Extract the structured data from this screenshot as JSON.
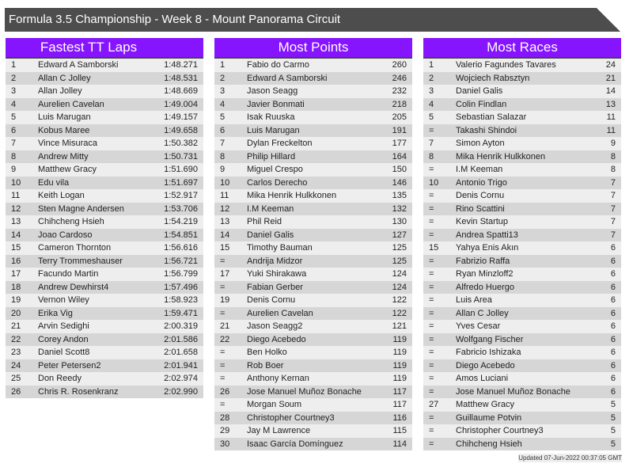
{
  "title": "Formula 3.5 Championship - Week 8 - Mount Panorama Circuit",
  "colors": {
    "header": "#8614ff",
    "titlebar": "#4d4d4d",
    "row_light": "#eeeeee",
    "row_dark": "#d6d6d6"
  },
  "tables": [
    {
      "title": "Fastest TT Laps",
      "rows": [
        [
          "1",
          "Edward A Samborski",
          "1:48.271"
        ],
        [
          "2",
          "Allan C Jolley",
          "1:48.531"
        ],
        [
          "3",
          "Allan Jolley",
          "1:48.669"
        ],
        [
          "4",
          "Aurelien Cavelan",
          "1:49.004"
        ],
        [
          "5",
          "Luis Marugan",
          "1:49.157"
        ],
        [
          "6",
          "Kobus Maree",
          "1:49.658"
        ],
        [
          "7",
          "Vince Misuraca",
          "1:50.382"
        ],
        [
          "8",
          "Andrew Mitty",
          "1:50.731"
        ],
        [
          "9",
          "Matthew Gracy",
          "1:51.690"
        ],
        [
          "10",
          "Edu vila",
          "1:51.697"
        ],
        [
          "11",
          "Keith Logan",
          "1:52.917"
        ],
        [
          "12",
          "Sten Magne Andersen",
          "1:53.706"
        ],
        [
          "13",
          "Chihcheng Hsieh",
          "1:54.219"
        ],
        [
          "14",
          "Joao Cardoso",
          "1:54.851"
        ],
        [
          "15",
          "Cameron Thornton",
          "1:56.616"
        ],
        [
          "16",
          "Terry Trommeshauser",
          "1:56.721"
        ],
        [
          "17",
          "Facundo Martin",
          "1:56.799"
        ],
        [
          "18",
          "Andrew Dewhirst4",
          "1:57.496"
        ],
        [
          "19",
          "Vernon Wiley",
          "1:58.923"
        ],
        [
          "20",
          "Erika Vig",
          "1:59.471"
        ],
        [
          "21",
          "Arvin Sedighi",
          "2:00.319"
        ],
        [
          "22",
          "Corey Andon",
          "2:01.586"
        ],
        [
          "23",
          "Daniel Scott8",
          "2:01.658"
        ],
        [
          "24",
          "Peter Petersen2",
          "2:01.941"
        ],
        [
          "25",
          "Don Reedy",
          "2:02.974"
        ],
        [
          "26",
          "Chris R. Rosenkranz",
          "2:02.990"
        ]
      ]
    },
    {
      "title": "Most Points",
      "rows": [
        [
          "1",
          "Fabio do Carmo",
          "260"
        ],
        [
          "2",
          "Edward A Samborski",
          "246"
        ],
        [
          "3",
          "Jason Seagg",
          "232"
        ],
        [
          "4",
          "Javier Bonmati",
          "218"
        ],
        [
          "5",
          "Isak Ruuska",
          "205"
        ],
        [
          "6",
          "Luis Marugan",
          "191"
        ],
        [
          "7",
          "Dylan Freckelton",
          "177"
        ],
        [
          "8",
          "Philip Hillard",
          "164"
        ],
        [
          "9",
          "Miguel Crespo",
          "150"
        ],
        [
          "10",
          "Carlos Derecho",
          "146"
        ],
        [
          "11",
          "Mika Henrik Hulkkonen",
          "135"
        ],
        [
          "12",
          "I.M Keeman",
          "132"
        ],
        [
          "13",
          "Phil Reid",
          "130"
        ],
        [
          "14",
          "Daniel Galis",
          "127"
        ],
        [
          "15",
          "Timothy Bauman",
          "125"
        ],
        [
          "=",
          "Andrija Midzor",
          "125"
        ],
        [
          "17",
          "Yuki Shirakawa",
          "124"
        ],
        [
          "=",
          "Fabian Gerber",
          "124"
        ],
        [
          "19",
          "Denis Cornu",
          "122"
        ],
        [
          "=",
          "Aurelien Cavelan",
          "122"
        ],
        [
          "21",
          "Jason Seagg2",
          "121"
        ],
        [
          "22",
          "Diego Acebedo",
          "119"
        ],
        [
          "=",
          "Ben Holko",
          "119"
        ],
        [
          "=",
          "Rob Boer",
          "119"
        ],
        [
          "=",
          "Anthony Kernan",
          "119"
        ],
        [
          "26",
          "Jose Manuel Muñoz Bonache",
          "117"
        ],
        [
          "=",
          "Morgan Soum",
          "117"
        ],
        [
          "28",
          "Christopher Courtney3",
          "116"
        ],
        [
          "29",
          "Jay M Lawrence",
          "115"
        ],
        [
          "30",
          "Isaac García Domínguez",
          "114"
        ]
      ]
    },
    {
      "title": "Most Races",
      "rows": [
        [
          "1",
          "Valerio Fagundes Tavares",
          "24"
        ],
        [
          "2",
          "Wojciech Rabsztyn",
          "21"
        ],
        [
          "3",
          "Daniel Galis",
          "14"
        ],
        [
          "4",
          "Colin Findlan",
          "13"
        ],
        [
          "5",
          "Sebastian Salazar",
          "11"
        ],
        [
          "=",
          "Takashi Shindoi",
          "11"
        ],
        [
          "7",
          "Simon Ayton",
          "9"
        ],
        [
          "8",
          "Mika Henrik Hulkkonen",
          "8"
        ],
        [
          "=",
          "I.M Keeman",
          "8"
        ],
        [
          "10",
          "Antonio Trigo",
          "7"
        ],
        [
          "=",
          "Denis Cornu",
          "7"
        ],
        [
          "=",
          "Rino Scattini",
          "7"
        ],
        [
          "=",
          "Kevin Startup",
          "7"
        ],
        [
          "=",
          "Andrea Spatti13",
          "7"
        ],
        [
          "15",
          "Yahya Enis Akın",
          "6"
        ],
        [
          "=",
          "Fabrizio Raffa",
          "6"
        ],
        [
          "=",
          "Ryan Minzloff2",
          "6"
        ],
        [
          "=",
          "Alfredo Huergo",
          "6"
        ],
        [
          "=",
          "Luis Area",
          "6"
        ],
        [
          "=",
          "Allan C Jolley",
          "6"
        ],
        [
          "=",
          "Yves Cesar",
          "6"
        ],
        [
          "=",
          "Wolfgang Fischer",
          "6"
        ],
        [
          "=",
          "Fabricio Ishizaka",
          "6"
        ],
        [
          "=",
          "Diego Acebedo",
          "6"
        ],
        [
          "=",
          "Amos Luciani",
          "6"
        ],
        [
          "=",
          "Jose Manuel Muñoz Bonache",
          "6"
        ],
        [
          "27",
          "Matthew Gracy",
          "5"
        ],
        [
          "=",
          "Guillaume Potvin",
          "5"
        ],
        [
          "=",
          "Christopher Courtney3",
          "5"
        ],
        [
          "=",
          "Chihcheng Hsieh",
          "5"
        ]
      ]
    }
  ],
  "footer": "Updated 07-Jun-2022 00:37:05 GMT"
}
